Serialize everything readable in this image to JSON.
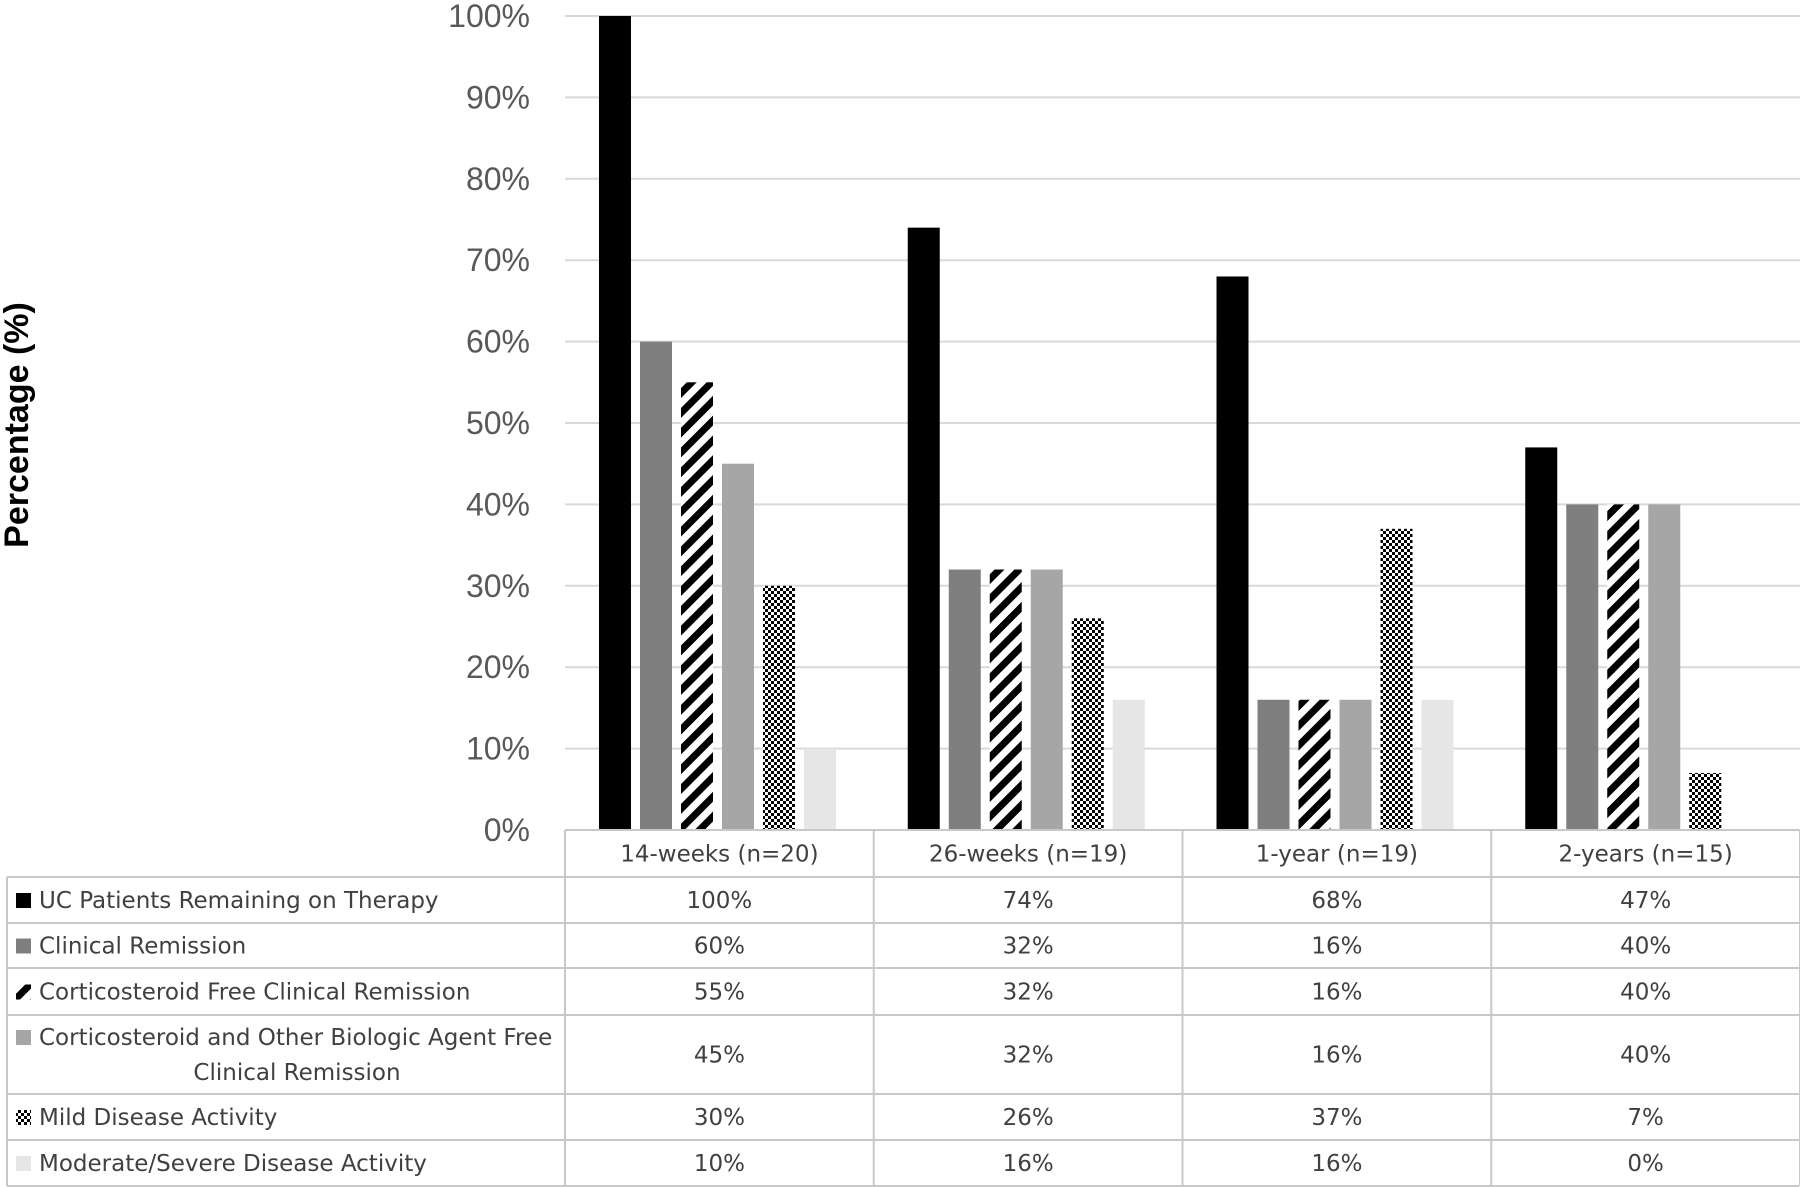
{
  "chart_data": {
    "type": "bar",
    "ylabel": "Percentage (%)",
    "ylim": [
      0,
      100
    ],
    "yticks": [
      0,
      10,
      20,
      30,
      40,
      50,
      60,
      70,
      80,
      90,
      100
    ],
    "ytick_labels": [
      "0%",
      "10%",
      "20%",
      "30%",
      "40%",
      "50%",
      "60%",
      "70%",
      "80%",
      "90%",
      "100%"
    ],
    "grid": true,
    "legend": "data-table-below",
    "categories": [
      "14-weeks (n=20)",
      "26-weeks (n=19)",
      "1-year (n=19)",
      "2-years (n=15)"
    ],
    "series": [
      {
        "name": "UC Patients Remaining on Therapy",
        "name_lines": [
          "UC Patients Remaining on Therapy"
        ],
        "values": [
          100,
          74,
          68,
          47
        ],
        "labels": [
          "100%",
          "74%",
          "68%",
          "47%"
        ],
        "color": "#000000",
        "pattern": "solid"
      },
      {
        "name": "Clinical Remission",
        "name_lines": [
          "Clinical Remission"
        ],
        "values": [
          60,
          32,
          16,
          40
        ],
        "labels": [
          "60%",
          "32%",
          "16%",
          "40%"
        ],
        "color": "#7f7f7f",
        "pattern": "solid"
      },
      {
        "name": "Corticosteroid Free Clinical Remission",
        "name_lines": [
          "Corticosteroid Free Clinical Remission"
        ],
        "values": [
          55,
          32,
          16,
          40
        ],
        "labels": [
          "55%",
          "32%",
          "16%",
          "40%"
        ],
        "color": "#000000",
        "pattern": "diagonal-stripes"
      },
      {
        "name": "Corticosteroid and Other Biologic Agent Free Clinical Remission",
        "name_lines": [
          "Corticosteroid and Other Biologic Agent Free",
          "Clinical Remission"
        ],
        "values": [
          45,
          32,
          16,
          40
        ],
        "labels": [
          "45%",
          "32%",
          "16%",
          "40%"
        ],
        "color": "#a6a6a6",
        "pattern": "solid"
      },
      {
        "name": "Mild Disease Activity",
        "name_lines": [
          "Mild Disease Activity"
        ],
        "values": [
          30,
          26,
          37,
          7
        ],
        "labels": [
          "30%",
          "26%",
          "37%",
          "7%"
        ],
        "color": "#000000",
        "pattern": "checker"
      },
      {
        "name": "Moderate/Severe Disease Activity",
        "name_lines": [
          "Moderate/Severe Disease Activity"
        ],
        "values": [
          10,
          16,
          16,
          0
        ],
        "labels": [
          "10%",
          "16%",
          "16%",
          "0%"
        ],
        "color": "#e6e6e6",
        "pattern": "solid"
      }
    ]
  }
}
